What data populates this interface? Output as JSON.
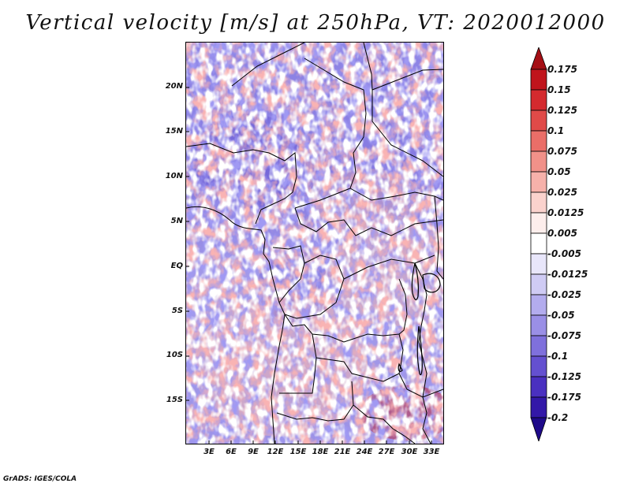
{
  "title": "Vertical velocity [m/s] at 250hPa, VT: 2020012000",
  "footer": "GrADS: IGES/COLA",
  "map": {
    "variable": "Vertical velocity",
    "units": "m/s",
    "level": "250hPa",
    "valid_time": "2020012000",
    "lat_labels": [
      "20N",
      "15N",
      "10N",
      "5N",
      "EQ",
      "5S",
      "10S",
      "15S"
    ],
    "lon_labels": [
      "3E",
      "6E",
      "9E",
      "12E",
      "15E",
      "18E",
      "21E",
      "24E",
      "27E",
      "30E",
      "33E"
    ]
  },
  "colorbar": {
    "labels": [
      "0.175",
      "0.15",
      "0.125",
      "0.1",
      "0.075",
      "0.05",
      "0.025",
      "0.0125",
      "0.005",
      "-0.005",
      "-0.0125",
      "-0.025",
      "-0.05",
      "-0.075",
      "-0.1",
      "-0.125",
      "-0.175",
      "-0.2"
    ],
    "colors": [
      "#a50f15",
      "#c0141c",
      "#d42a2e",
      "#e04a48",
      "#ea6e68",
      "#f19189",
      "#f6b1aa",
      "#fad2cd",
      "#fdeeec",
      "#ffffff",
      "#e8e6fa",
      "#cfcbf4",
      "#b3acee",
      "#9a8fe6",
      "#7f70dc",
      "#6450d0",
      "#4a30c0",
      "#3318a8",
      "#1f0a8a"
    ]
  }
}
